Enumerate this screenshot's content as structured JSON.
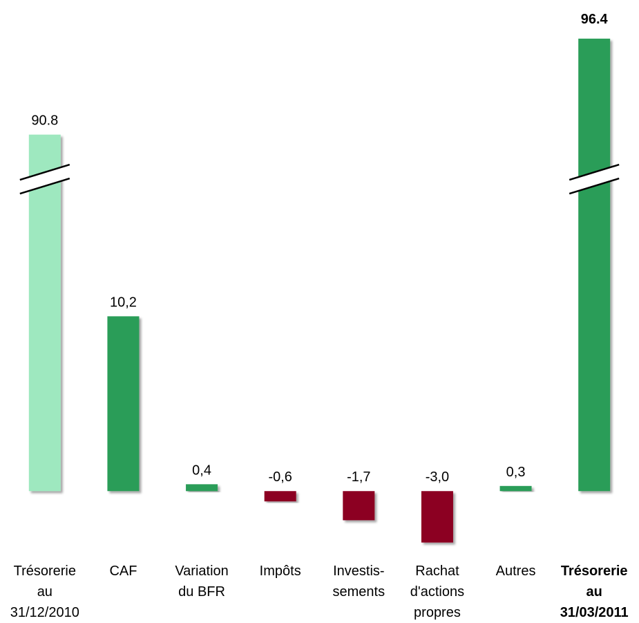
{
  "chart_data": {
    "type": "bar",
    "categories": [
      "Trésorerie\nau\n31/12/2010",
      "CAF",
      "Variation\ndu BFR",
      "Impôts",
      "Investis-\nsements",
      "Rachat\nd'actions\npropres",
      "Autres",
      "Trésorerie\nau\n31/03/2011"
    ],
    "values": [
      90.8,
      10.2,
      0.4,
      -0.6,
      -1.7,
      -3.0,
      0.3,
      96.4
    ],
    "value_labels": [
      "90.8",
      "10,2",
      "0,4",
      "-0,6",
      "-1,7",
      "-3,0",
      "0,3",
      "96.4"
    ],
    "colors": [
      "#9ee8bf",
      "#2a9d58",
      "#2a9d58",
      "#8c0020",
      "#8c0020",
      "#8c0020",
      "#2a9d58",
      "#2a9d58"
    ],
    "ylim": [
      -3.5,
      97
    ],
    "ybreak": [
      18,
      88
    ]
  }
}
